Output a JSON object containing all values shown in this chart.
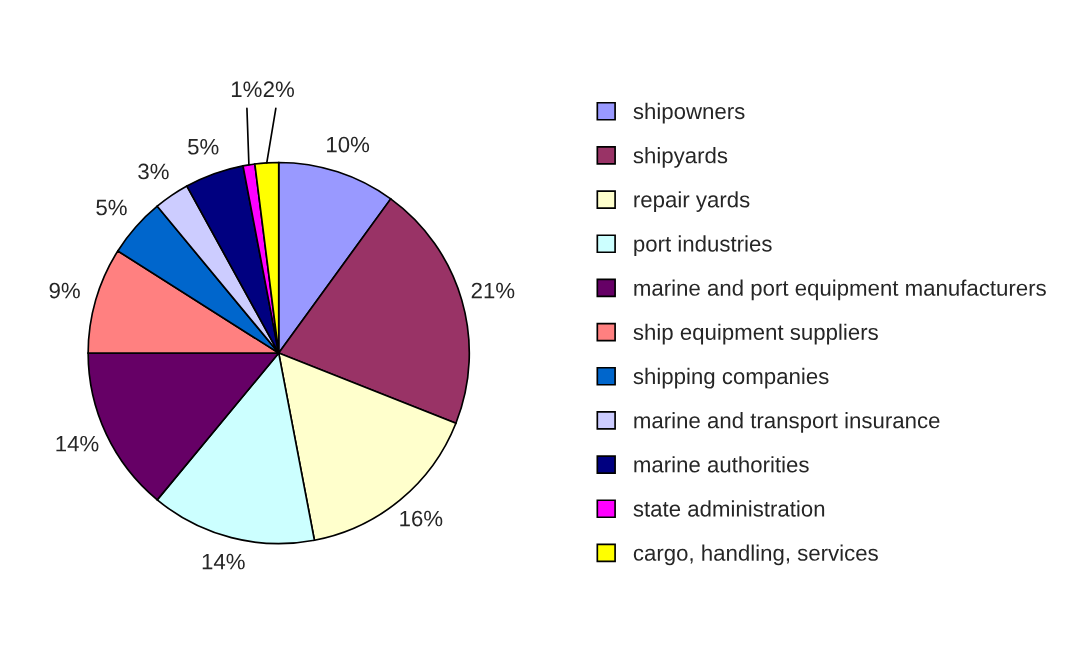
{
  "chart_data": {
    "type": "pie",
    "categories": [
      "shipowners",
      "shipyards",
      "repair yards",
      "port industries",
      "marine and port equipment manufacturers",
      "ship equipment suppliers",
      "shipping companies",
      "marine and transport insurance",
      "marine authorities",
      "state administration",
      "cargo, handling, services"
    ],
    "values": [
      10,
      21,
      16,
      14,
      14,
      9,
      5,
      3,
      5,
      1,
      2
    ],
    "colors": [
      "#9999ff",
      "#993366",
      "#ffffcc",
      "#ccffff",
      "#660066",
      "#ff8080",
      "#0066cc",
      "#ccccff",
      "#000080",
      "#ff00ff",
      "#ffff00"
    ],
    "value_labels": [
      "10%",
      "21%",
      "16%",
      "14%",
      "14%",
      "9%",
      "5%",
      "3%",
      "5%",
      "1%",
      "2%"
    ],
    "legend": "right"
  }
}
